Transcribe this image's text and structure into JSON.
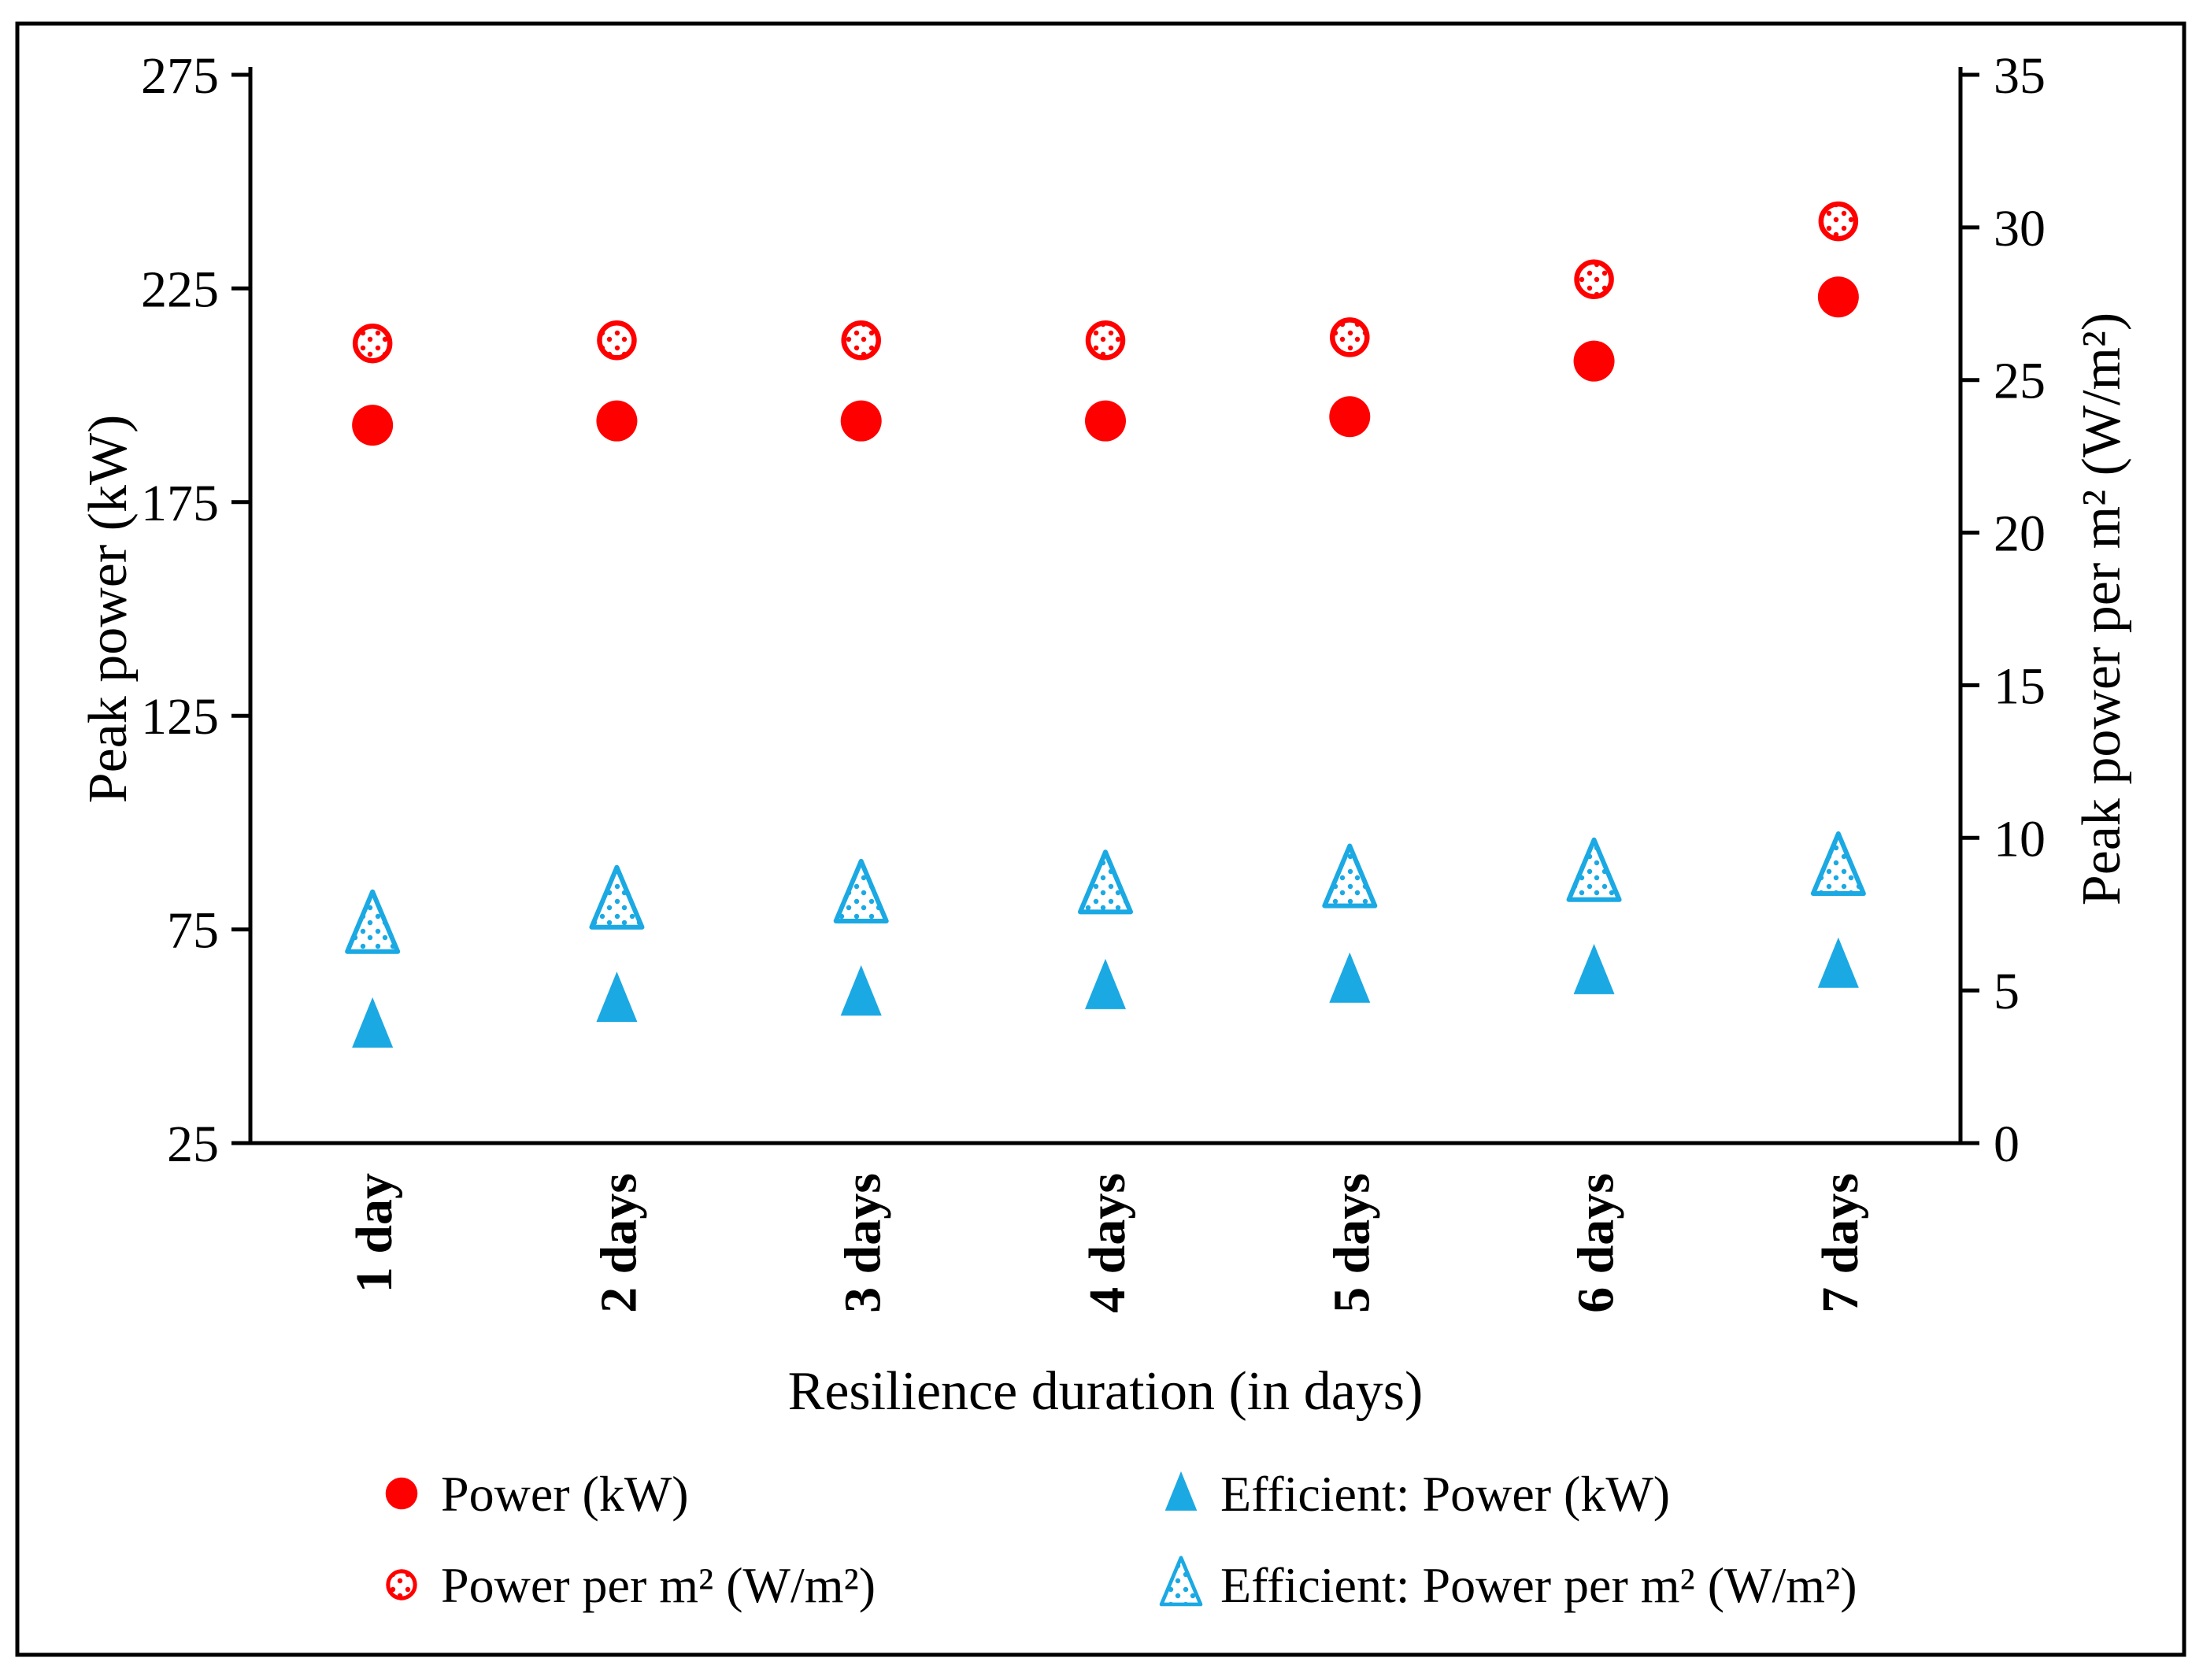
{
  "figure": {
    "background": "#ffffff",
    "frame_color": "#000000",
    "accent_red": "#FF0000",
    "accent_blue": "#1BA9E3"
  },
  "chart_data": {
    "type": "scatter",
    "categories": [
      "1 day",
      "2 days",
      "3 days",
      "4 days",
      "5 days",
      "6 days",
      "7 days"
    ],
    "x_axis": {
      "title": "Resilience duration (in days)"
    },
    "left_axis": {
      "title": "Peak power (kW)",
      "min": 25,
      "max": 275,
      "ticks": [
        275,
        225,
        175,
        125,
        75,
        25
      ]
    },
    "right_axis": {
      "title": "Peak power per m² (W/m²)",
      "min": 0,
      "max": 35,
      "ticks": [
        35,
        30,
        25,
        20,
        15,
        10,
        5,
        0
      ]
    },
    "grid": "off",
    "legend_position": "bottom-two-columns",
    "series": [
      {
        "name": "Power (kW)",
        "axis": "left",
        "marker": "circle",
        "fill": "solid",
        "color": "#FF0000",
        "values": [
          193,
          194,
          194,
          194,
          195,
          208,
          223
        ]
      },
      {
        "name": "Power per m² (W/m²)",
        "axis": "right",
        "marker": "circle",
        "fill": "dotted",
        "color": "#FF0000",
        "values": [
          26.2,
          26.3,
          26.3,
          26.3,
          26.4,
          28.3,
          30.2
        ]
      },
      {
        "name": "Efficient: Power (kW)",
        "axis": "left",
        "marker": "triangle",
        "fill": "solid",
        "color": "#1BA9E3",
        "values": [
          52.5,
          58.5,
          60,
          61.5,
          63,
          65,
          66.5
        ]
      },
      {
        "name": "Efficient: Power per m² (W/m²)",
        "axis": "right",
        "marker": "triangle",
        "fill": "dotted",
        "color": "#1BA9E3",
        "values": [
          7.1,
          7.9,
          8.1,
          8.4,
          8.6,
          8.8,
          9.0
        ]
      }
    ],
    "legend_order": [
      0,
      2,
      1,
      3
    ]
  }
}
